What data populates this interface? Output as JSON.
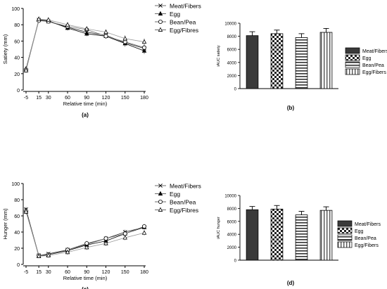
{
  "chart_data": [
    {
      "type": "line",
      "panel": "(a)",
      "xlabel": "Relative time (min)",
      "ylabel": "Satiety (mm)",
      "x": [
        -5,
        15,
        30,
        60,
        90,
        120,
        150,
        180
      ],
      "xticks": [
        "-5",
        "15",
        "30",
        "60",
        "90",
        "120",
        "150",
        "180"
      ],
      "ylim": [
        0,
        100
      ],
      "yticks": [
        0,
        20,
        40,
        60,
        80,
        100
      ],
      "series": [
        {
          "name": "Meat/Fibers",
          "marker": "x",
          "values": [
            24,
            86,
            84,
            77,
            71,
            67,
            58,
            51
          ],
          "err": [
            3,
            2,
            2,
            3,
            3,
            3,
            4,
            4
          ]
        },
        {
          "name": "Egg",
          "marker": "triangle-filled",
          "values": [
            26,
            86,
            85,
            76,
            69,
            66,
            57,
            48
          ],
          "err": [
            3,
            2,
            2,
            3,
            3,
            3,
            4,
            4
          ]
        },
        {
          "name": "Bean/Pea",
          "marker": "circle-open",
          "values": [
            25,
            85,
            84,
            78,
            74,
            66,
            59,
            52
          ],
          "err": [
            3,
            2,
            2,
            3,
            3,
            3,
            4,
            4
          ]
        },
        {
          "name": "Egg/Fibres",
          "marker": "triangle-open",
          "values": [
            24,
            87,
            86,
            80,
            75,
            71,
            63,
            59
          ],
          "err": [
            3,
            2,
            2,
            3,
            3,
            3,
            4,
            4
          ]
        }
      ]
    },
    {
      "type": "bar",
      "panel": "(b)",
      "ylabel": "iAUC satiety",
      "ylim": [
        0,
        10000
      ],
      "yticks": [
        0,
        2000,
        4000,
        6000,
        8000,
        10000
      ],
      "categories": [
        "Meat/Fibers",
        "Egg",
        "Bean/Pea",
        "Egg/Fibers"
      ],
      "patterns": [
        "solid-dark",
        "checker",
        "horizontal-lines",
        "vertical-lines"
      ],
      "values": [
        8100,
        8400,
        7800,
        8600
      ],
      "err": [
        600,
        550,
        600,
        600
      ]
    },
    {
      "type": "line",
      "panel": "(c)",
      "xlabel": "Relative time (min)",
      "ylabel": "Hunger (mm)",
      "x": [
        -5,
        15,
        30,
        60,
        90,
        120,
        150,
        180
      ],
      "xticks": [
        "-5",
        "15",
        "30",
        "60",
        "90",
        "120",
        "150",
        "180"
      ],
      "ylim": [
        0,
        100
      ],
      "yticks": [
        0,
        20,
        40,
        60,
        80,
        100
      ],
      "series": [
        {
          "name": "Meat/Fibers",
          "marker": "x",
          "values": [
            68,
            11,
            13,
            18,
            25,
            32,
            40,
            46
          ],
          "err": [
            3,
            2,
            2,
            3,
            3,
            3,
            3,
            3
          ]
        },
        {
          "name": "Egg",
          "marker": "triangle-filled",
          "values": [
            67,
            10,
            12,
            17,
            24,
            29,
            38,
            46
          ],
          "err": [
            3,
            2,
            2,
            3,
            3,
            3,
            3,
            3
          ]
        },
        {
          "name": "Bean/Pea",
          "marker": "circle-open",
          "values": [
            66,
            11,
            12,
            18,
            26,
            32,
            38,
            47
          ],
          "err": [
            3,
            2,
            2,
            3,
            3,
            3,
            3,
            3
          ]
        },
        {
          "name": "Egg/Fibres",
          "marker": "triangle-open",
          "values": [
            65,
            10,
            11,
            15,
            21,
            26,
            33,
            39
          ],
          "err": [
            3,
            2,
            2,
            3,
            3,
            3,
            3,
            3
          ]
        }
      ]
    },
    {
      "type": "bar",
      "panel": "(d)",
      "ylabel": "iAUC hunger",
      "ylim": [
        0,
        10000
      ],
      "yticks": [
        0,
        2000,
        4000,
        6000,
        8000,
        10000
      ],
      "categories": [
        "Meat/Fibers",
        "Egg",
        "Bean/Pea",
        "Egg/Fibers"
      ],
      "patterns": [
        "solid-dark",
        "checker",
        "horizontal-lines",
        "vertical-lines"
      ],
      "values": [
        7800,
        7900,
        7000,
        7700
      ],
      "err": [
        500,
        550,
        550,
        550
      ]
    }
  ]
}
